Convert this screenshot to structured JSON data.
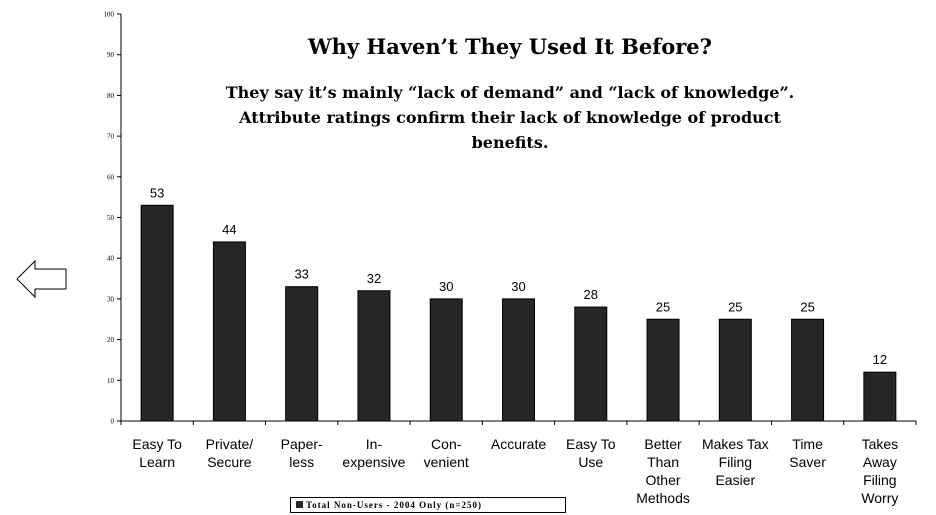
{
  "chart_data": {
    "type": "bar",
    "title": "Why Haven’t They Used It Before?",
    "subtitle_lines": [
      "They say it’s mainly “lack of demand” and “lack of knowledge”.",
      "Attribute ratings confirm their lack of knowledge of product benefits."
    ],
    "categories": [
      [
        "Easy To",
        "Learn"
      ],
      [
        "Private/",
        "Secure"
      ],
      [
        "Paper-",
        "less"
      ],
      [
        "In-",
        "expensive"
      ],
      [
        "Con-",
        "venient"
      ],
      [
        "Accurate"
      ],
      [
        "Easy To",
        "Use"
      ],
      [
        "Better",
        "Than",
        "Other",
        "Methods"
      ],
      [
        "Makes Tax",
        "Filing",
        "Easier"
      ],
      [
        "Time",
        "Saver"
      ],
      [
        "Takes",
        "Away",
        "Filing",
        "Worry"
      ]
    ],
    "series": [
      {
        "name": "Total Non-Users - 2004 Only (n=250)",
        "values": [
          53,
          44,
          33,
          32,
          30,
          30,
          28,
          25,
          25,
          25,
          12
        ]
      }
    ],
    "ylim": [
      0,
      100
    ],
    "yticks": [
      "0",
      "10",
      "20",
      "30",
      "40",
      "50",
      "60",
      "70",
      "80",
      "90",
      "100"
    ],
    "grid": false,
    "legend_position": "bottom",
    "bar_color": "#262626"
  },
  "annotations": {
    "arrow_icon": "left-arrow-icon"
  }
}
